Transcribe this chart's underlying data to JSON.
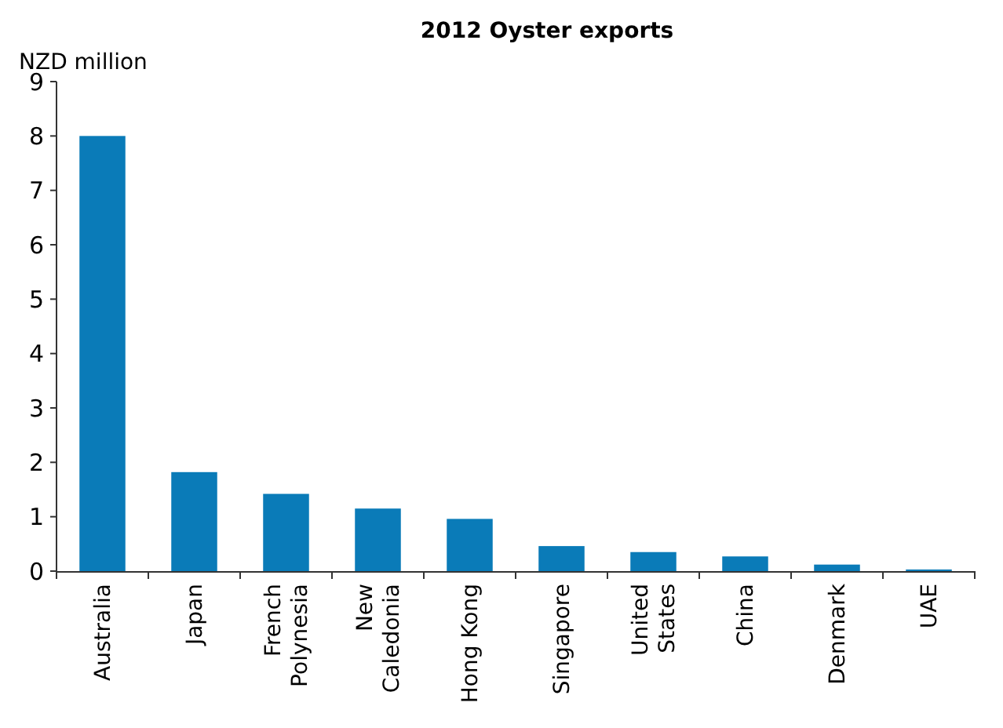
{
  "chart_data": {
    "type": "bar",
    "title": "2012 Oyster exports",
    "ylabel": "NZD million",
    "categories": [
      "Australia",
      "Japan",
      "French\nPolynesia",
      "New\nCaledonia",
      "Hong Kong",
      "Singapore",
      "United\nStates",
      "China",
      "Denmark",
      "UAE"
    ],
    "values": [
      8.0,
      1.82,
      1.42,
      1.15,
      0.96,
      0.46,
      0.35,
      0.27,
      0.12,
      0.03
    ],
    "color": "#0a7bb8",
    "ylim": [
      0,
      9
    ],
    "yticks": [
      0,
      1,
      2,
      3,
      4,
      5,
      6,
      7,
      8,
      9
    ],
    "grid": false
  }
}
